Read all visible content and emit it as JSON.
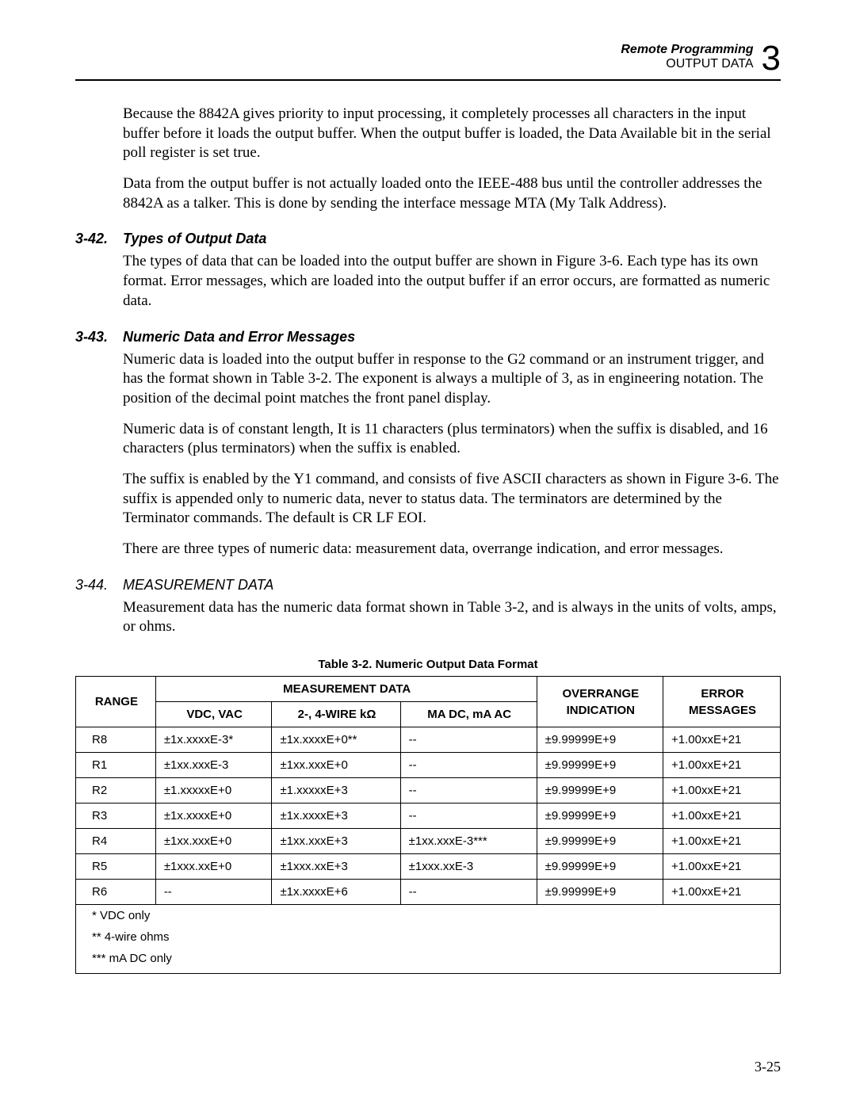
{
  "header": {
    "line1": "Remote Programming",
    "line2": "OUTPUT DATA",
    "chapter": "3"
  },
  "paragraphs": {
    "p1": "Because the 8842A gives priority to input processing, it completely processes all characters in the input buffer before it loads the output buffer. When the output buffer is loaded, the Data Available bit in the serial poll register is set true.",
    "p2": "Data from the output buffer is not actually loaded onto the IEEE-488 bus until the controller addresses the 8842A as a talker. This is done by sending the interface message MTA (My Talk Address)."
  },
  "sec342": {
    "num": "3-42.",
    "title": "Types of Output Data",
    "p1": "The types of data that can be loaded into the output buffer are shown in Figure 3-6. Each type has its own format. Error messages, which are loaded into the output buffer if an error occurs, are formatted as numeric data."
  },
  "sec343": {
    "num": "3-43.",
    "title": "Numeric Data and Error Messages",
    "p1": "Numeric data is loaded into the output buffer in response to the G2 command or an instrument trigger, and has the format shown in Table 3-2. The exponent is always a multiple of 3, as in engineering notation. The position of the decimal point matches the front panel display.",
    "p2": "Numeric data is of constant length, It is 11 characters (plus terminators) when the suffix is disabled, and 16 characters (plus terminators) when the suffix is enabled.",
    "p3": "The suffix is enabled by the Y1 command, and consists of five ASCII characters as shown in Figure 3-6. The suffix is appended only to numeric data, never to status data. The terminators are determined by the Terminator commands. The default is CR LF EOI.",
    "p4": "There are three types of numeric data: measurement data, overrange indication, and error messages."
  },
  "sec344": {
    "num": "3-44.",
    "title": "MEASUREMENT DATA",
    "p1": "Measurement data has the numeric data format shown in Table 3-2, and is always in the units of volts, amps, or ohms."
  },
  "table": {
    "caption": "Table 3-2. Numeric Output Data Format",
    "headers": {
      "range": "RANGE",
      "measurement": "MEASUREMENT DATA",
      "vdc": "VDC, VAC",
      "wire": "2-, 4-WIRE kΩ",
      "madc": "MA DC, mA AC",
      "overrange1": "OVERRANGE",
      "overrange2": "INDICATION",
      "error1": "ERROR",
      "error2": "MESSAGES"
    },
    "rows": [
      {
        "r": "R8",
        "c1": "±1x.xxxxE-3*",
        "c2": "±1x.xxxxE+0**",
        "c3": "--",
        "c4": "±9.99999E+9",
        "c5": "+1.00xxE+21"
      },
      {
        "r": "R1",
        "c1": "±1xx.xxxE-3",
        "c2": "±1xx.xxxE+0",
        "c3": "--",
        "c4": "±9.99999E+9",
        "c5": "+1.00xxE+21"
      },
      {
        "r": "R2",
        "c1": "±1.xxxxxE+0",
        "c2": "±1.xxxxxE+3",
        "c3": "--",
        "c4": "±9.99999E+9",
        "c5": "+1.00xxE+21"
      },
      {
        "r": "R3",
        "c1": "±1x.xxxxE+0",
        "c2": "±1x.xxxxE+3",
        "c3": "--",
        "c4": "±9.99999E+9",
        "c5": "+1.00xxE+21"
      },
      {
        "r": "R4",
        "c1": "±1xx.xxxE+0",
        "c2": "±1xx.xxxE+3",
        "c3": "±1xx.xxxE-3***",
        "c4": "±9.99999E+9",
        "c5": "+1.00xxE+21"
      },
      {
        "r": "R5",
        "c1": "±1xxx.xxE+0",
        "c2": "±1xxx.xxE+3",
        "c3": "±1xxx.xxE-3",
        "c4": "±9.99999E+9",
        "c5": "+1.00xxE+21"
      },
      {
        "r": "R6",
        "c1": "--",
        "c2": "±1x.xxxxE+6",
        "c3": "--",
        "c4": "±9.99999E+9",
        "c5": "+1.00xxE+21"
      }
    ],
    "footnotes": {
      "f1": "* VDC only",
      "f2": "** 4-wire ohms",
      "f3": "*** mA DC only"
    }
  },
  "pageNumber": "3-25"
}
